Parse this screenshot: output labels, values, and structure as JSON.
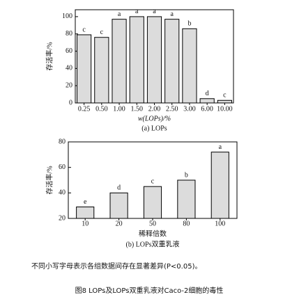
{
  "chart_data": [
    {
      "type": "bar",
      "subtitle": "(a) LOPs",
      "x_label": "w(LOPs)/%",
      "y_label": "存活率/%",
      "categories": [
        "0.25",
        "0.50",
        "1.00",
        "1.50",
        "2.00",
        "2.50",
        "3.00",
        "6.00",
        "10.00"
      ],
      "values": [
        79,
        76,
        97,
        100,
        100,
        97,
        86,
        5,
        3
      ],
      "annotations": [
        "c",
        "c",
        "a",
        "a",
        "a",
        "a",
        "b",
        "d",
        "c"
      ],
      "color": "#dcdcdc",
      "ylim": [
        0,
        108
      ],
      "yticks": [
        0,
        20,
        40,
        60,
        80,
        100
      ]
    },
    {
      "type": "bar",
      "subtitle": "(b) LOPs双重乳液",
      "x_label": "稀释倍数",
      "y_label": "存活率/%",
      "categories": [
        "10",
        "20",
        "50",
        "80",
        "100"
      ],
      "values": [
        29,
        40,
        45,
        50,
        72
      ],
      "annotations": [
        "e",
        "d",
        "c",
        "b",
        "a"
      ],
      "color": "#dcdcdc",
      "ylim": [
        20,
        80
      ],
      "yticks": [
        20,
        40,
        60,
        80
      ]
    }
  ],
  "note": "不同小写字母表示各组数据间存在显著差异(P<0.05)。",
  "caption": "图8 LOPs及LOPs双重乳液对Caco-2细胞的毒性"
}
